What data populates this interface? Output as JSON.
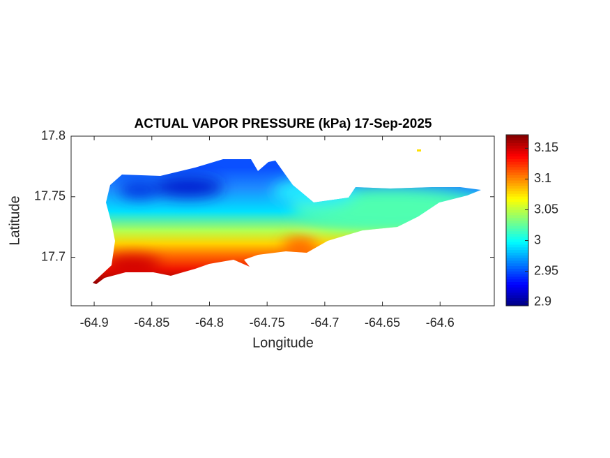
{
  "chart_data": {
    "type": "contour_map",
    "title": "ACTUAL VAPOR PRESSURE (kPa) 17-Sep-2025",
    "x_label": "Longitude",
    "y_label": "Latitude",
    "xlim": [
      -64.92,
      -64.553
    ],
    "xticks": [
      -64.9,
      -64.85,
      -64.8,
      -64.75,
      -64.7,
      -64.65,
      -64.6
    ],
    "ylim": [
      17.66,
      17.8
    ],
    "yticks": [
      17.7,
      17.75,
      17.8
    ],
    "colormap": "jet",
    "clim": [
      2.894,
      3.172
    ],
    "cticks": [
      2.9,
      2.95,
      3,
      3.05,
      3.1,
      3.15
    ]
  }
}
